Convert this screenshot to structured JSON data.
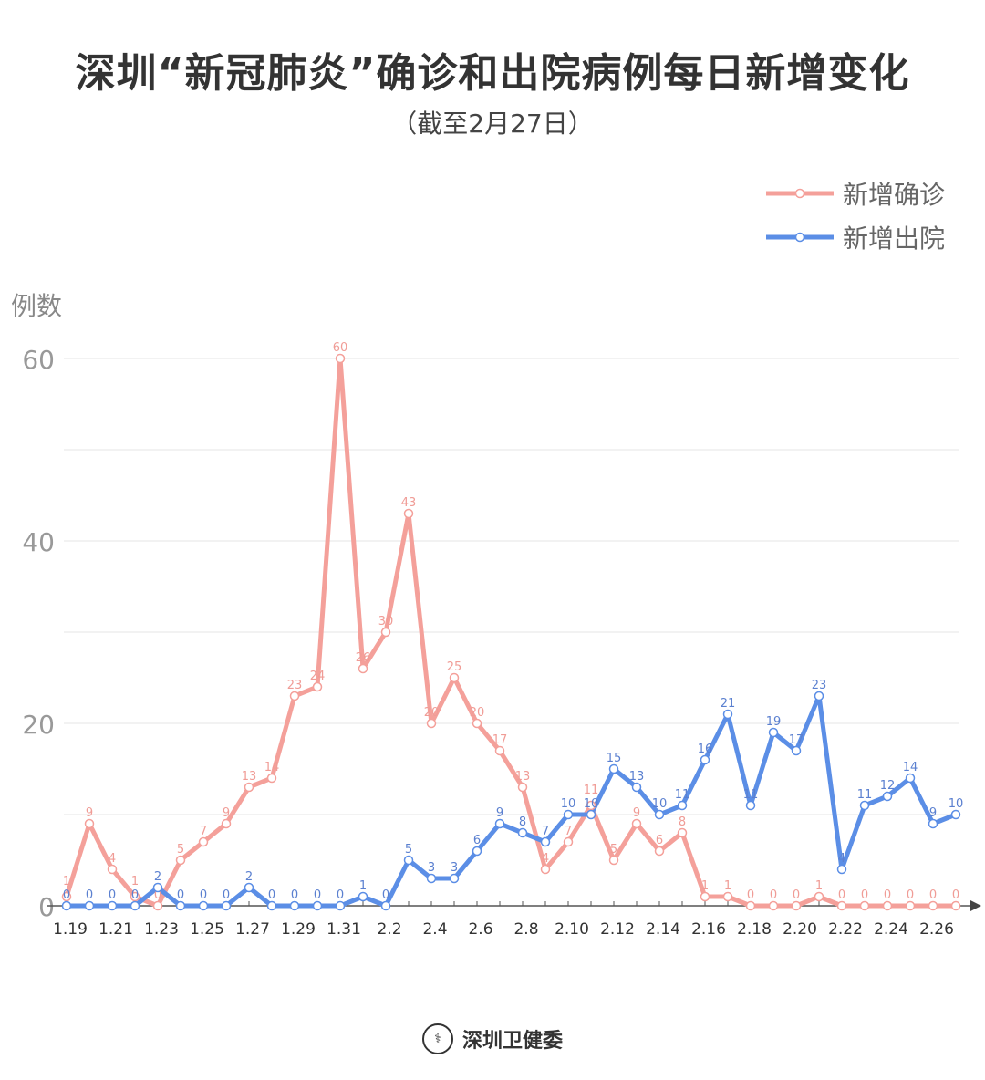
{
  "title": "深圳“新冠肺炎”确诊和出院病例每日新增变化",
  "subtitle": "（截至2月27日）",
  "footer": {
    "logo_text": "深圳卫健委",
    "icon": "emblem-icon"
  },
  "chart_data": {
    "type": "line",
    "title": "深圳“新冠肺炎”确诊和出院病例每日新增变化",
    "subtitle": "（截至2月27日）",
    "ylabel": "例数",
    "xlabel": "",
    "ylim": [
      0,
      60
    ],
    "yticks": [
      0,
      20,
      40,
      60
    ],
    "grid": true,
    "legend_position": "top-right",
    "categories": [
      "1.19",
      "1.20",
      "1.21",
      "1.22",
      "1.23",
      "1.24",
      "1.25",
      "1.26",
      "1.27",
      "1.28",
      "1.29",
      "1.30",
      "1.31",
      "2.1",
      "2.2",
      "2.3",
      "2.4",
      "2.5",
      "2.6",
      "2.7",
      "2.8",
      "2.9",
      "2.10",
      "2.11",
      "2.12",
      "2.13",
      "2.14",
      "2.15",
      "2.16",
      "2.17",
      "2.18",
      "2.19",
      "2.20",
      "2.21",
      "2.22",
      "2.23",
      "2.24",
      "2.25",
      "2.26",
      "2.27"
    ],
    "xtick_labels": [
      "1.19",
      "1.21",
      "1.23",
      "1.25",
      "1.27",
      "1.29",
      "1.31",
      "2.2",
      "2.4",
      "2.6",
      "2.8",
      "2.10",
      "2.12",
      "2.14",
      "2.16",
      "2.18",
      "2.20",
      "2.22",
      "2.24",
      "2.26"
    ],
    "series": [
      {
        "name": "新增确诊",
        "color": "#f4a09a",
        "label_color": "#f09c96",
        "values": [
          1,
          9,
          4,
          1,
          0,
          5,
          7,
          9,
          13,
          14,
          23,
          24,
          60,
          26,
          30,
          43,
          20,
          25,
          20,
          17,
          13,
          4,
          7,
          11,
          5,
          9,
          6,
          8,
          1,
          1,
          0,
          0,
          0,
          1,
          0,
          0,
          0,
          0,
          0,
          0
        ]
      },
      {
        "name": "新增出院",
        "color": "#5b8ee6",
        "label_color": "#5b80d0",
        "values": [
          0,
          0,
          0,
          0,
          2,
          0,
          0,
          0,
          2,
          0,
          0,
          0,
          0,
          1,
          0,
          5,
          3,
          3,
          6,
          9,
          8,
          7,
          10,
          10,
          15,
          13,
          10,
          11,
          16,
          21,
          11,
          19,
          17,
          23,
          4,
          11,
          12,
          14,
          9,
          10
        ]
      }
    ]
  }
}
